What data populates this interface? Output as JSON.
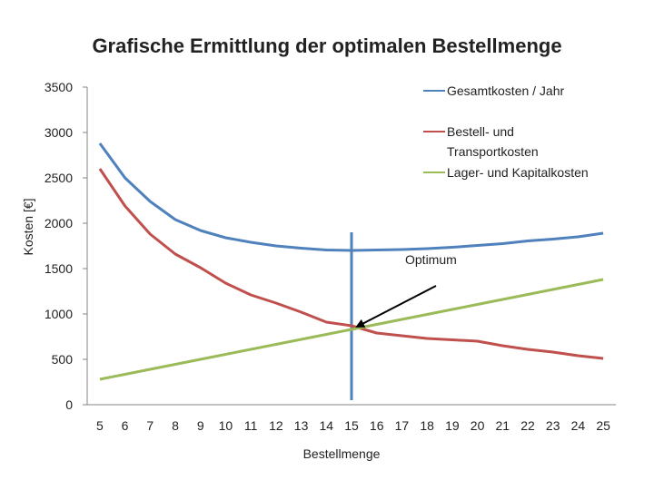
{
  "chart_data": {
    "type": "line",
    "title": "Grafische Ermittlung der optimalen Bestellmenge",
    "xlabel": "Bestellmenge",
    "ylabel": "Kosten [€]",
    "x": [
      5,
      6,
      7,
      8,
      9,
      10,
      11,
      12,
      13,
      14,
      15,
      16,
      17,
      18,
      19,
      20,
      21,
      22,
      23,
      24,
      25
    ],
    "xlim": [
      4.5,
      25.5
    ],
    "ylim": [
      0,
      3500
    ],
    "yticks": [
      0,
      500,
      1000,
      1500,
      2000,
      2500,
      3000,
      3500
    ],
    "grid": false,
    "legend_position": "top-right",
    "series": [
      {
        "name": "Gesamtkosten / Jahr",
        "color": "#4f81bd",
        "values": [
          2880,
          2500,
          2240,
          2040,
          1920,
          1840,
          1790,
          1750,
          1725,
          1705,
          1700,
          1705,
          1710,
          1720,
          1735,
          1755,
          1775,
          1805,
          1825,
          1850,
          1890
        ]
      },
      {
        "name": "Bestell- und Transportkosten",
        "color": "#c0504d",
        "values": [
          2600,
          2190,
          1880,
          1660,
          1510,
          1340,
          1210,
          1120,
          1020,
          910,
          870,
          790,
          760,
          730,
          715,
          700,
          650,
          610,
          580,
          540,
          510
        ]
      },
      {
        "name": "Lager- und Kapitalkosten",
        "color": "#9bbb59",
        "values": [
          280,
          335,
          390,
          445,
          500,
          555,
          610,
          665,
          720,
          775,
          830,
          885,
          940,
          995,
          1050,
          1105,
          1160,
          1215,
          1270,
          1325,
          1380
        ]
      }
    ],
    "annotations": [
      {
        "text": "Optimum",
        "x": 15,
        "y": 830
      }
    ],
    "optimum_marker": {
      "x": 15,
      "y_from": 50,
      "y_to": 1900,
      "color": "#4f81bd"
    }
  }
}
